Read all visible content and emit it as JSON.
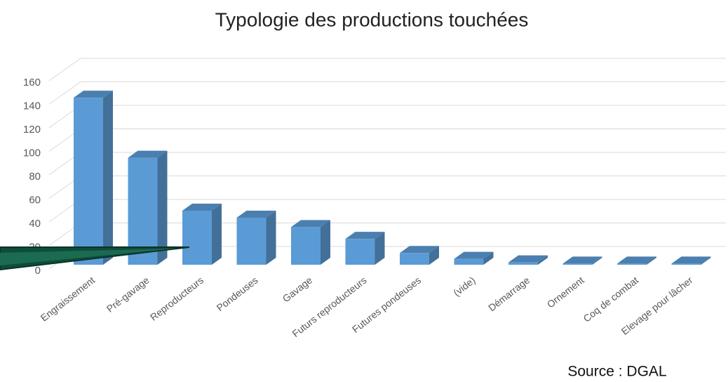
{
  "chart_data": {
    "type": "bar3d",
    "title": "Typologie des productions touchées",
    "categories": [
      "Engraissement",
      "Pré-gavage",
      "Reproducteurs",
      "Pondeuses",
      "Gavage",
      "Futurs reproducteurs",
      "Futures pondeuses",
      "(vide)",
      "Démarrage",
      "Ornement",
      "Coq de combat",
      "Elevage pour lâcher"
    ],
    "values": [
      142,
      91,
      46,
      40,
      32,
      22,
      10,
      5,
      2,
      1,
      1,
      1
    ],
    "color": "#5b9bd5",
    "ylim": [
      0,
      160
    ],
    "yticks": [
      0,
      20,
      40,
      60,
      80,
      100,
      120,
      140,
      160
    ],
    "grid": true,
    "source": "Source : DGAL"
  }
}
